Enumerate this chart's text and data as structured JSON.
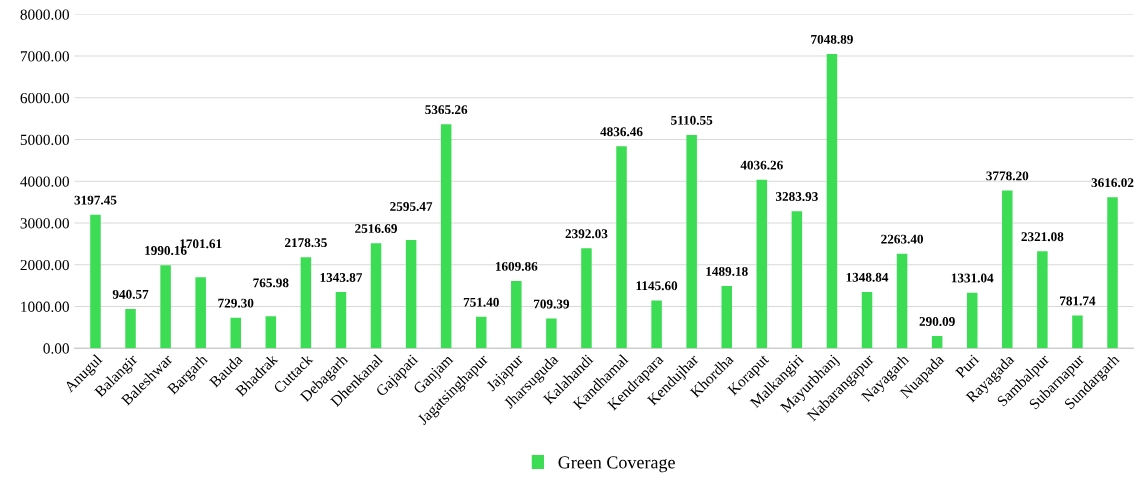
{
  "chart_data": {
    "type": "bar",
    "categories": [
      "Anugul",
      "Balangir",
      "Baleshwar",
      "Bargarh",
      "Bauda",
      "Bhadrak",
      "Cuttack",
      "Debagarh",
      "Dhenkanal",
      "Gajapati",
      "Ganjam",
      "Jagatsinghapur",
      "Jajapur",
      "Jharsuguda",
      "Kalahandi",
      "Kandhamal",
      "Kendrapara",
      "Kendujhar",
      "Khordha",
      "Koraput",
      "Malkangiri",
      "Mayurbhanj",
      "Nabarangapur",
      "Nayagarh",
      "Nuapada",
      "Puri",
      "Rayagada",
      "Sambalpur",
      "Subarnapur",
      "Sundargarh"
    ],
    "series": [
      {
        "name": "Green Coverage",
        "color": "#3ddc55",
        "values": [
          3197.45,
          940.57,
          1990.16,
          1701.61,
          729.3,
          765.98,
          2178.35,
          1343.87,
          2516.69,
          2595.47,
          5365.26,
          751.4,
          1609.86,
          709.39,
          2392.03,
          4836.46,
          1145.6,
          5110.55,
          1489.18,
          4036.26,
          3283.93,
          7048.89,
          1348.84,
          2263.4,
          290.09,
          1331.04,
          3778.2,
          2321.08,
          781.74,
          3616.02
        ],
        "value_labels": [
          "3197.45",
          "940.57",
          "1990.16",
          "1701.61",
          "729.30",
          "765.98",
          "2178.35",
          "1343.87",
          "2516.69",
          "2595.47",
          "5365.26",
          "751.40",
          "1609.86",
          "709.39",
          "2392.03",
          "4836.46",
          "1145.60",
          "5110.55",
          "1489.18",
          "4036.26",
          "3283.93",
          "7048.89",
          "1348.84",
          "2263.40",
          "290.09",
          "1331.04",
          "3778.20",
          "2321.08",
          "781.74",
          "3616.02"
        ]
      }
    ],
    "ylim": [
      0,
      8000
    ],
    "yticks": [
      {
        "value": 0,
        "label": "0.00"
      },
      {
        "value": 1000,
        "label": "1000.00"
      },
      {
        "value": 2000,
        "label": "2000.00"
      },
      {
        "value": 3000,
        "label": "3000.00"
      },
      {
        "value": 4000,
        "label": "4000.00"
      },
      {
        "value": 5000,
        "label": "5000.00"
      },
      {
        "value": 6000,
        "label": "6000.00"
      },
      {
        "value": 7000,
        "label": "7000.00"
      },
      {
        "value": 8000,
        "label": "8000.00"
      }
    ],
    "grid": "y",
    "legend": "bottom"
  }
}
